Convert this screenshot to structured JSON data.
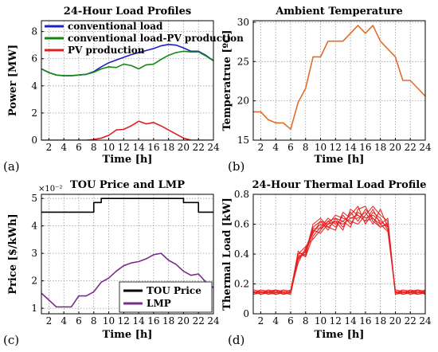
{
  "chart_data": [
    {
      "id": "a",
      "type": "line",
      "panel_label": "(a)",
      "title": "24-Hour Load Profiles",
      "xlabel": "Time [h]",
      "ylabel": "Power [MW]",
      "xlim": [
        1,
        24
      ],
      "ylim": [
        0,
        8.8
      ],
      "xticks": [
        2,
        4,
        6,
        8,
        10,
        12,
        14,
        16,
        18,
        20,
        22,
        24
      ],
      "yticks": [
        0,
        2,
        4,
        6,
        8
      ],
      "grid": true,
      "legend_position": "top-left",
      "x": [
        1,
        2,
        3,
        4,
        5,
        6,
        7,
        8,
        9,
        10,
        11,
        12,
        13,
        14,
        15,
        16,
        17,
        18,
        19,
        20,
        21,
        22,
        23,
        24
      ],
      "series": [
        {
          "name": "conventional load",
          "color": "#1f1fc8",
          "values": [
            5.25,
            4.98,
            4.8,
            4.75,
            4.75,
            4.8,
            4.85,
            5.05,
            5.4,
            5.7,
            5.9,
            6.1,
            6.3,
            6.45,
            6.6,
            6.75,
            6.95,
            7.05,
            7.0,
            6.8,
            6.55,
            6.55,
            6.25,
            5.85
          ]
        },
        {
          "name": "conventional load-PV production",
          "color": "#128a12",
          "values": [
            5.25,
            4.98,
            4.8,
            4.75,
            4.75,
            4.8,
            4.85,
            5.0,
            5.25,
            5.4,
            5.35,
            5.6,
            5.5,
            5.25,
            5.55,
            5.6,
            5.95,
            6.25,
            6.45,
            6.55,
            6.5,
            6.5,
            6.2,
            5.85
          ]
        },
        {
          "name": "PV production",
          "color": "#e02020",
          "values": [
            0,
            0,
            0,
            0,
            0,
            0,
            0,
            0.05,
            0.15,
            0.35,
            0.75,
            0.8,
            1.05,
            1.4,
            1.2,
            1.3,
            1.05,
            0.75,
            0.45,
            0.15,
            0,
            0,
            0,
            0
          ]
        }
      ]
    },
    {
      "id": "b",
      "type": "line",
      "panel_label": "(b)",
      "title": "Ambient Temperature",
      "xlabel": "Time [h]",
      "ylabel": "Temperatrue [ºC]",
      "xlim": [
        1,
        24
      ],
      "ylim": [
        15,
        30.2
      ],
      "xticks": [
        2,
        4,
        6,
        8,
        10,
        12,
        14,
        16,
        18,
        20,
        22,
        24
      ],
      "yticks": [
        15,
        20,
        25,
        30
      ],
      "grid": true,
      "x": [
        1,
        2,
        3,
        4,
        5,
        6,
        7,
        8,
        9,
        10,
        11,
        12,
        13,
        14,
        15,
        16,
        17,
        18,
        19,
        20,
        21,
        22,
        23,
        24
      ],
      "series": [
        {
          "color": "#e06d2a",
          "values": [
            18.6,
            18.6,
            17.6,
            17.2,
            17.2,
            16.4,
            19.8,
            21.6,
            25.6,
            25.6,
            27.6,
            27.6,
            27.6,
            28.6,
            29.6,
            28.6,
            29.6,
            27.6,
            26.6,
            25.6,
            22.6,
            22.6,
            21.6,
            20.6
          ]
        }
      ]
    },
    {
      "id": "c",
      "type": "line",
      "panel_label": "(c)",
      "title": "TOU Price and LMP",
      "xlabel": "Time [h]",
      "ylabel": "Price [$/kWh]",
      "y_multiplier": "×10⁻²",
      "xlim": [
        1,
        24
      ],
      "ylim": [
        0.8,
        5.15
      ],
      "xticks": [
        2,
        4,
        6,
        8,
        10,
        12,
        14,
        16,
        18,
        20,
        22,
        24
      ],
      "yticks": [
        1,
        2,
        3,
        4,
        5
      ],
      "grid": true,
      "legend_position": "bottom-right",
      "series": [
        {
          "name": "TOU Price",
          "color": "#000000",
          "step": true,
          "x": [
            1,
            8,
            8,
            9,
            9,
            20,
            20,
            22,
            22,
            24
          ],
          "values": [
            4.5,
            4.5,
            4.85,
            4.85,
            5.0,
            5.0,
            4.85,
            4.85,
            4.5,
            4.5
          ]
        },
        {
          "name": "LMP",
          "color": "#7a2c8c",
          "x": [
            1,
            2,
            3,
            4,
            5,
            6,
            7,
            8,
            9,
            10,
            11,
            12,
            13,
            14,
            15,
            16,
            17,
            18,
            19,
            20,
            21,
            22,
            23,
            24
          ],
          "values": [
            1.55,
            1.3,
            1.05,
            1.05,
            1.05,
            1.45,
            1.45,
            1.6,
            1.95,
            2.1,
            2.35,
            2.55,
            2.65,
            2.7,
            2.8,
            2.95,
            3.0,
            2.75,
            2.6,
            2.35,
            2.2,
            2.25,
            1.95,
            1.75
          ]
        }
      ]
    },
    {
      "id": "d",
      "type": "line",
      "panel_label": "(d)",
      "title": "24-Hour Thermal Load Profile",
      "xlabel": "Time [h]",
      "ylabel": "Thermal Load [kW]",
      "xlim": [
        1,
        24
      ],
      "ylim": [
        0,
        0.8
      ],
      "xticks": [
        2,
        4,
        6,
        8,
        10,
        12,
        14,
        16,
        18,
        20,
        22,
        24
      ],
      "yticks": [
        0,
        0.2,
        0.4,
        0.6,
        0.8
      ],
      "grid": true,
      "color": "#e82020",
      "x": [
        1,
        2,
        3,
        4,
        5,
        6,
        7,
        8,
        9,
        10,
        11,
        12,
        13,
        14,
        15,
        16,
        17,
        18,
        19,
        20,
        21,
        22,
        23,
        24
      ],
      "series": [
        {
          "values": [
            0.14,
            0.15,
            0.13,
            0.14,
            0.15,
            0.14,
            0.38,
            0.4,
            0.55,
            0.6,
            0.58,
            0.62,
            0.6,
            0.64,
            0.66,
            0.62,
            0.7,
            0.6,
            0.55,
            0.14,
            0.15,
            0.13,
            0.14,
            0.15
          ]
        },
        {
          "values": [
            0.15,
            0.13,
            0.14,
            0.15,
            0.13,
            0.15,
            0.4,
            0.45,
            0.5,
            0.56,
            0.62,
            0.58,
            0.66,
            0.6,
            0.68,
            0.64,
            0.66,
            0.62,
            0.58,
            0.15,
            0.13,
            0.14,
            0.15,
            0.13
          ]
        },
        {
          "values": [
            0.13,
            0.14,
            0.15,
            0.13,
            0.14,
            0.13,
            0.36,
            0.42,
            0.58,
            0.62,
            0.56,
            0.64,
            0.58,
            0.68,
            0.62,
            0.7,
            0.64,
            0.58,
            0.6,
            0.13,
            0.14,
            0.15,
            0.13,
            0.14
          ]
        },
        {
          "values": [
            0.16,
            0.15,
            0.14,
            0.16,
            0.15,
            0.14,
            0.42,
            0.38,
            0.52,
            0.58,
            0.64,
            0.6,
            0.62,
            0.66,
            0.72,
            0.6,
            0.68,
            0.64,
            0.56,
            0.16,
            0.15,
            0.14,
            0.16,
            0.15
          ]
        },
        {
          "values": [
            0.14,
            0.16,
            0.15,
            0.14,
            0.16,
            0.15,
            0.34,
            0.44,
            0.56,
            0.54,
            0.6,
            0.66,
            0.64,
            0.62,
            0.6,
            0.66,
            0.72,
            0.66,
            0.62,
            0.14,
            0.16,
            0.15,
            0.14,
            0.16
          ]
        },
        {
          "values": [
            0.15,
            0.14,
            0.16,
            0.15,
            0.14,
            0.16,
            0.4,
            0.41,
            0.6,
            0.64,
            0.58,
            0.56,
            0.68,
            0.64,
            0.64,
            0.68,
            0.6,
            0.7,
            0.58,
            0.15,
            0.14,
            0.16,
            0.15,
            0.14
          ]
        },
        {
          "values": [
            0.13,
            0.15,
            0.14,
            0.13,
            0.15,
            0.14,
            0.37,
            0.43,
            0.54,
            0.62,
            0.6,
            0.62,
            0.56,
            0.7,
            0.66,
            0.62,
            0.64,
            0.6,
            0.64,
            0.13,
            0.15,
            0.14,
            0.13,
            0.15
          ]
        },
        {
          "values": [
            0.15,
            0.13,
            0.15,
            0.16,
            0.13,
            0.14,
            0.39,
            0.39,
            0.57,
            0.57,
            0.62,
            0.64,
            0.62,
            0.58,
            0.7,
            0.72,
            0.62,
            0.58,
            0.61,
            0.15,
            0.13,
            0.15,
            0.16,
            0.13
          ]
        }
      ]
    }
  ]
}
